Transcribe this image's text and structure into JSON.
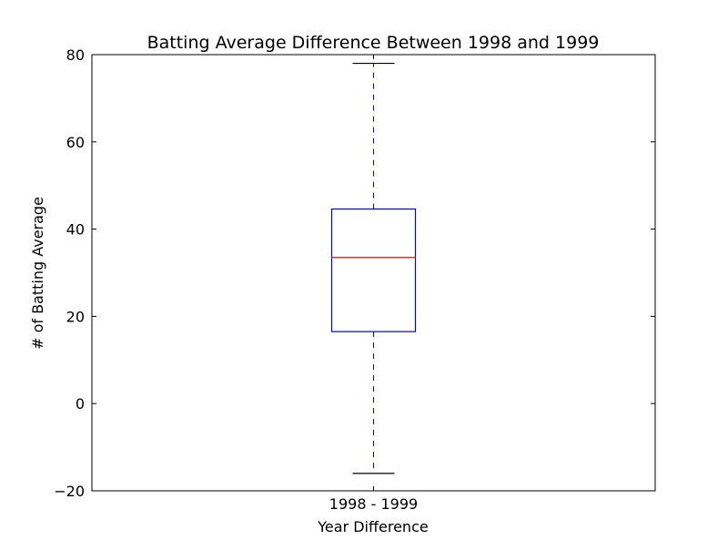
{
  "chart_data": {
    "type": "box",
    "title": "Batting Average Difference Between 1998 and 1999",
    "xlabel": "Year Difference",
    "ylabel": "# of Batting Average",
    "ylim": [
      -20,
      80
    ],
    "y_ticks": [
      -20,
      0,
      20,
      40,
      60,
      80
    ],
    "y_tick_labels": [
      "−20",
      "0",
      "20",
      "40",
      "60",
      "80"
    ],
    "grid": false,
    "categories": [
      "1998 - 1999"
    ],
    "boxes": [
      {
        "category": "1998 - 1999",
        "whisker_low": -16,
        "q1": 16.5,
        "median": 33.5,
        "q3": 44.6,
        "whisker_high": 78
      }
    ],
    "colors": {
      "box": "#0000ff",
      "median": "#ff0000",
      "whisker": "#0000ff",
      "cap": "#000000",
      "axes": "#000000"
    }
  }
}
